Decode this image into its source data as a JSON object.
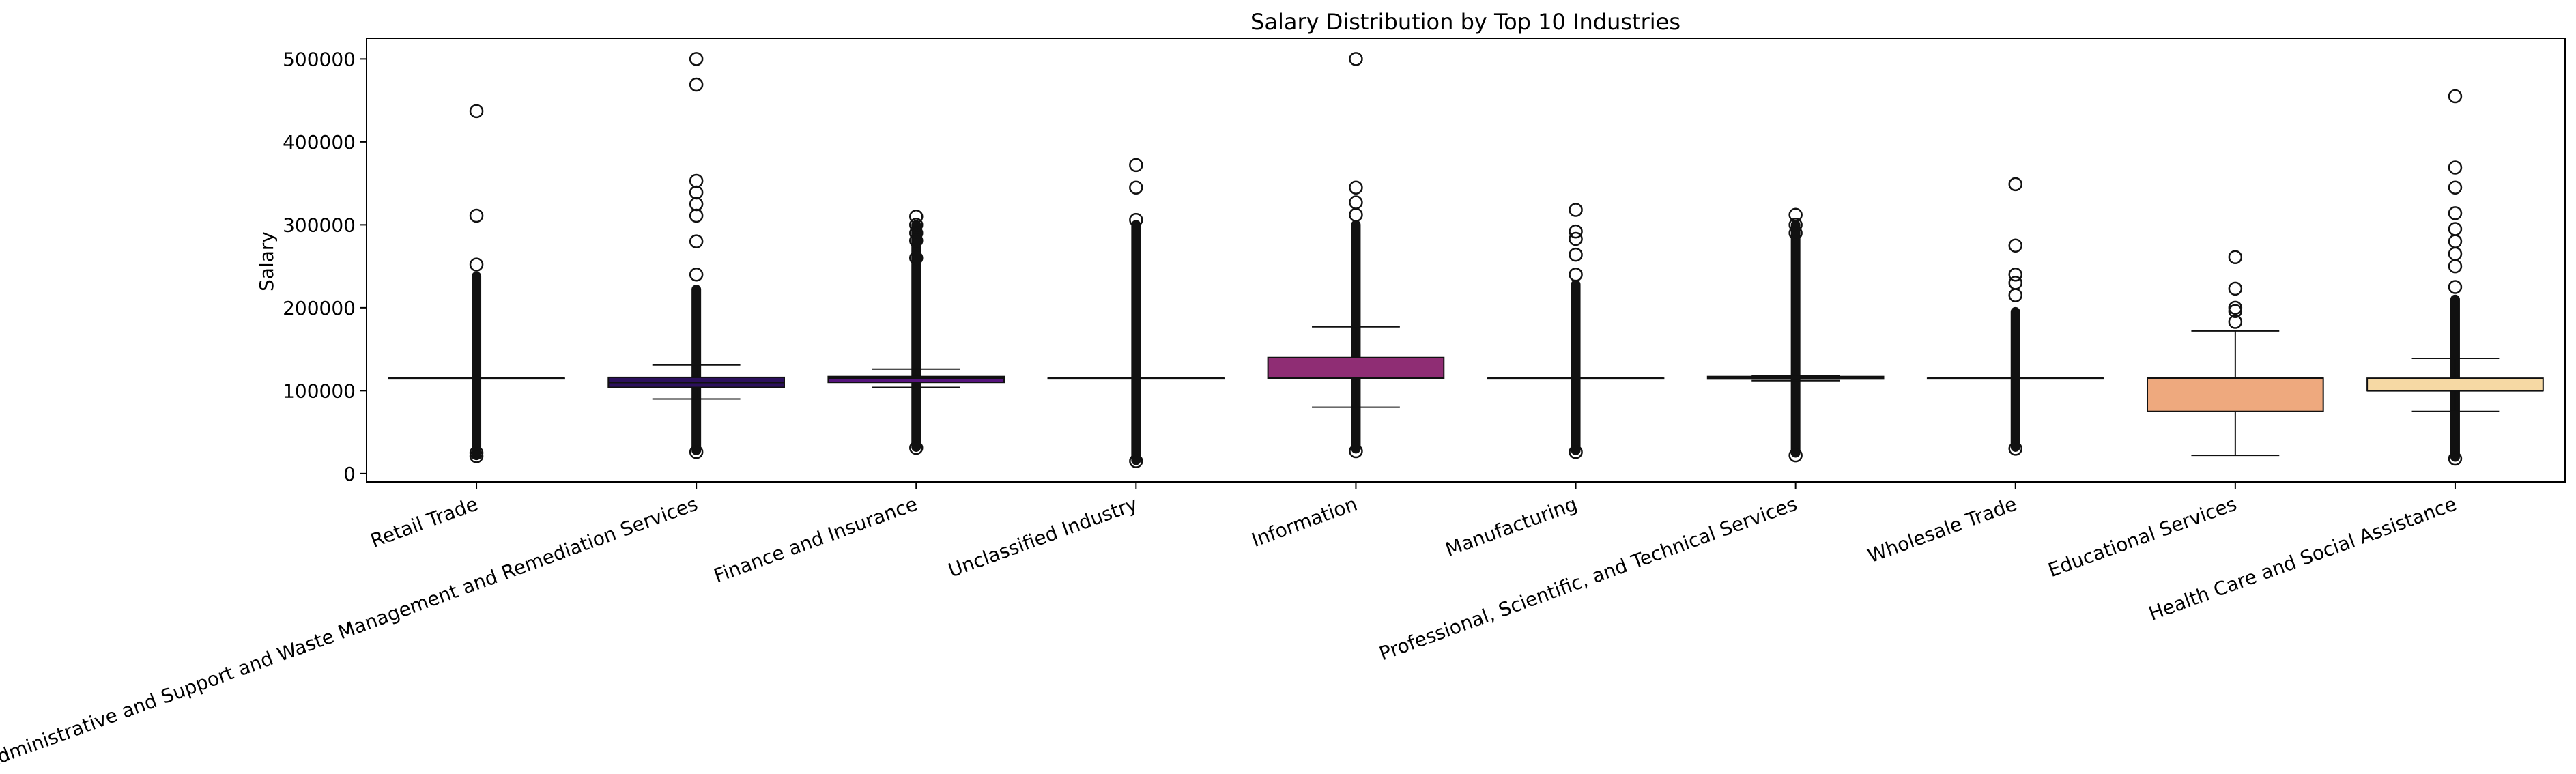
{
  "chart_data": {
    "type": "box",
    "title": "Salary Distribution by Top 10 Industries",
    "xlabel": "",
    "ylabel": "Salary",
    "ylim": [
      -10000,
      525000
    ],
    "yticks": [
      0,
      100000,
      200000,
      300000,
      400000,
      500000
    ],
    "ytick_labels": [
      "0",
      "100000",
      "200000",
      "300000",
      "400000",
      "500000"
    ],
    "grid": false,
    "legend": "none",
    "categories": [
      "Retail Trade",
      "Administrative and Support and Waste Management and Remediation Services",
      "Finance and Insurance",
      "Unclassified Industry",
      "Information",
      "Manufacturing",
      "Professional, Scientific, and Technical Services",
      "Wholesale Trade",
      "Educational Services",
      "Health Care and Social Assistance"
    ],
    "boxes": [
      {
        "color": "#000004",
        "q1": 115000,
        "median": 115000,
        "q3": 115000,
        "whisker_low": 115000,
        "whisker_high": 115000,
        "outlier_band": [
          22000,
          238000
        ],
        "outliers": [
          437000,
          311000,
          252000,
          21000,
          25000
        ]
      },
      {
        "color": "#2c105c",
        "q1": 104000,
        "median": 110000,
        "q3": 116000,
        "whisker_low": 90000,
        "whisker_high": 131000,
        "outlier_band": [
          28000,
          222000
        ],
        "outliers": [
          500000,
          469000,
          353000,
          339000,
          325000,
          311000,
          280000,
          240000,
          26000
        ]
      },
      {
        "color": "#56147d",
        "q1": 110000,
        "median": 115000,
        "q3": 117000,
        "whisker_low": 104000,
        "whisker_high": 126000,
        "outlier_band": [
          32000,
          300000
        ],
        "outliers": [
          310000,
          300000,
          290000,
          281000,
          260000,
          31000
        ]
      },
      {
        "color": "#812581",
        "q1": 115000,
        "median": 115000,
        "q3": 115000,
        "whisker_low": 115000,
        "whisker_high": 115000,
        "outlier_band": [
          16000,
          300000
        ],
        "outliers": [
          372000,
          345000,
          306000,
          15000
        ]
      },
      {
        "color": "#8f2d74",
        "q1": 115000,
        "median": 115000,
        "q3": 140000,
        "whisker_low": 80000,
        "whisker_high": 177000,
        "outlier_band": [
          30000,
          300000
        ],
        "outliers": [
          500000,
          345000,
          327000,
          312000,
          27000
        ]
      },
      {
        "color": "#d3436e",
        "q1": 115000,
        "median": 115000,
        "q3": 115000,
        "whisker_low": 115000,
        "whisker_high": 115000,
        "outlier_band": [
          28000,
          228000
        ],
        "outliers": [
          318000,
          292000,
          283000,
          264000,
          240000,
          26000
        ]
      },
      {
        "color": "#f1605d",
        "q1": 114000,
        "median": 115000,
        "q3": 117000,
        "whisker_low": 112000,
        "whisker_high": 118000,
        "outlier_band": [
          25000,
          300000
        ],
        "outliers": [
          312000,
          300000,
          290000,
          22000
        ]
      },
      {
        "color": "#fc8961",
        "q1": 115000,
        "median": 115000,
        "q3": 115000,
        "whisker_low": 115000,
        "whisker_high": 115000,
        "outlier_band": [
          32000,
          195000
        ],
        "outliers": [
          349000,
          275000,
          240000,
          230000,
          215000,
          30000
        ]
      },
      {
        "color": "#eea97e",
        "q1": 75000,
        "median": 115000,
        "q3": 115000,
        "whisker_low": 22000,
        "whisker_high": 172000,
        "outlier_band": null,
        "outliers": [
          261000,
          223000,
          200000,
          196000,
          183000
        ]
      },
      {
        "color": "#f6d9a4",
        "q1": 100000,
        "median": 100000,
        "q3": 115000,
        "whisker_low": 75000,
        "whisker_high": 139000,
        "outlier_band": [
          20000,
          210000
        ],
        "outliers": [
          455000,
          369000,
          345000,
          314000,
          295000,
          280000,
          265000,
          250000,
          225000,
          18000
        ]
      }
    ]
  }
}
